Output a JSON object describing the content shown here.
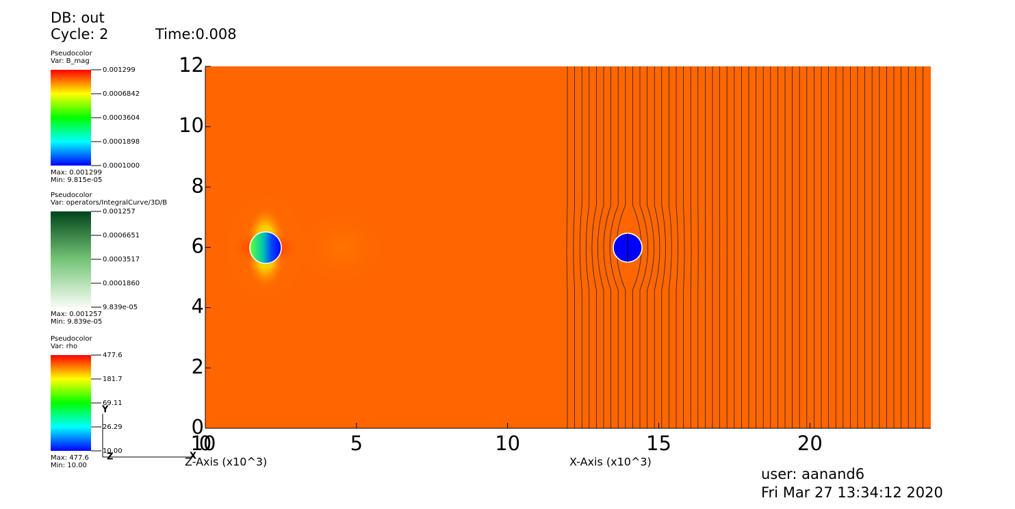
{
  "header": {
    "db": "DB: out",
    "cycle": "Cycle: 2",
    "time": "Time:0.008"
  },
  "legends": [
    {
      "plot": "Pseudocolor",
      "var": "Var: B_mag",
      "palette": "rainbow",
      "ticks": [
        0.001299,
        0.0006842,
        0.0003604,
        0.0001898,
        {
          "value": 0.0001,
          "label": "0.0001000"
        }
      ],
      "max": "Max:  0.001299",
      "min": "Min:  9.815e-05"
    },
    {
      "plot": "Pseudocolor",
      "var": "Var: operators/IntegralCurve/3D/B",
      "palette": "greens",
      "ticks": [
        0.001257,
        0.0006651,
        0.0003517,
        {
          "value": 0.000186,
          "label": "0.0001860"
        },
        {
          "value": 9.839e-05,
          "label": "9.839e-05"
        }
      ],
      "max": "Max:  0.001257",
      "min": "Min:  9.839e-05"
    },
    {
      "plot": "Pseudocolor",
      "var": "Var: rho",
      "palette": "rainbow",
      "ticks": [
        477.6,
        181.7,
        69.11,
        26.29,
        {
          "value": 10,
          "label": "10.00"
        }
      ],
      "max": "Max:  477.6",
      "min": "Min:  10.00"
    }
  ],
  "chart_data": {
    "type": "pseudocolor",
    "xlabel": "X-Axis (x10^3)",
    "zlabel": "Z-Axis (x10^3)",
    "xlim": [
      0,
      24
    ],
    "ylim": [
      0,
      12
    ],
    "xticks": [
      0,
      5,
      10,
      15,
      20
    ],
    "yticks": [
      0,
      2,
      4,
      6,
      8,
      10,
      12
    ],
    "zticks": [
      10
    ]
  },
  "triad": {
    "y": "Y",
    "z": "Z",
    "x": "X"
  },
  "footer": {
    "user": "user: aanand6",
    "date": "Fri Mar 27 13:34:12 2020"
  }
}
